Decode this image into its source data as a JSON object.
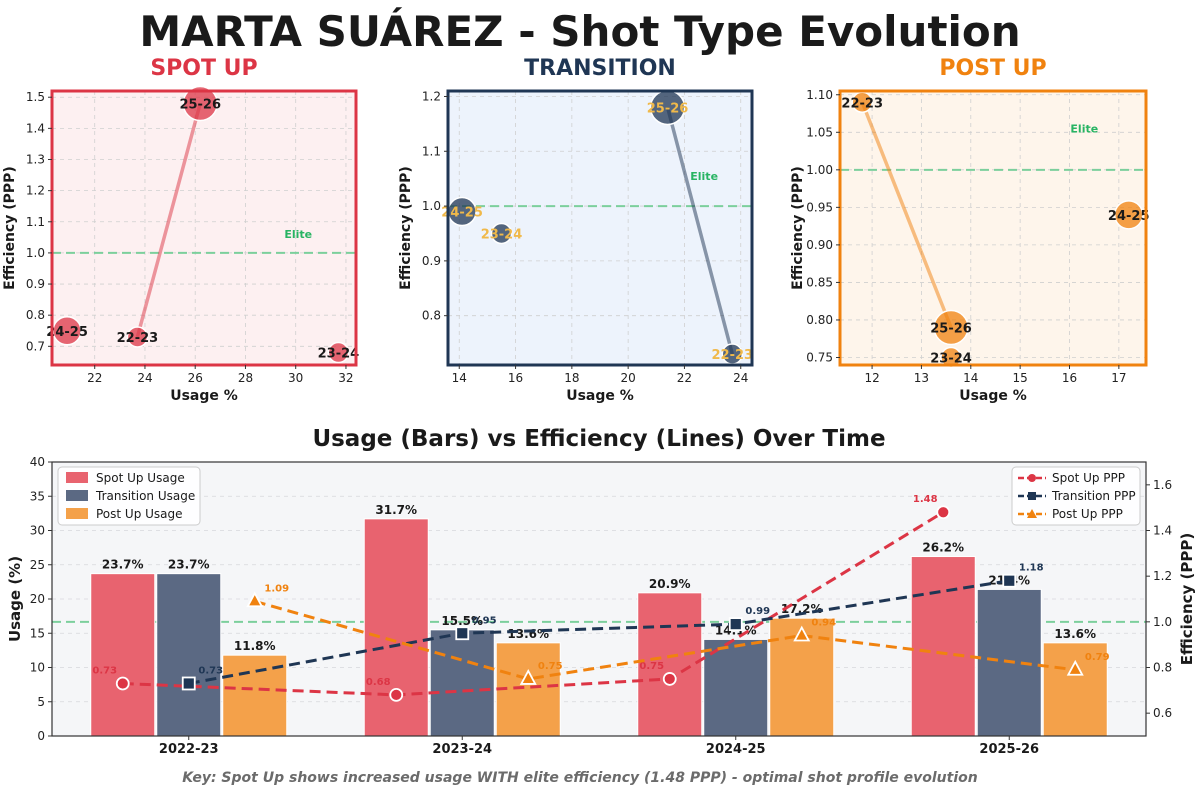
{
  "title": "MARTA SUÁREZ - Shot Type Evolution",
  "footer": "Key: Spot Up shows increased usage WITH elite efficiency (1.48 PPP) - optimal shot profile evolution",
  "chart_data": [
    {
      "type": "scatter",
      "title": "SPOT UP",
      "color": "#dc3545",
      "bg": "#fdf0f1",
      "xlabel": "Usage %",
      "ylabel": "Efficiency (PPP)",
      "xlim": [
        20.3,
        32.4
      ],
      "ylim": [
        0.64,
        1.52
      ],
      "xticks": [
        22,
        24,
        26,
        28,
        30,
        32
      ],
      "yticks": [
        0.7,
        0.8,
        0.9,
        1.0,
        1.1,
        1.2,
        1.3,
        1.4,
        1.5
      ],
      "ytick_labels": [
        "0.7",
        "0.8",
        "0.9",
        "1.0",
        "1.1",
        "1.2",
        "1.3",
        "1.4",
        "1.5"
      ],
      "elite_line": 1.0,
      "elite_label": "Elite",
      "elite_pos": [
        30.1,
        1.06
      ],
      "points": [
        {
          "season": "22-23",
          "x": 23.7,
          "y": 0.73,
          "size": 1,
          "label_color": "#1a1a1a"
        },
        {
          "season": "23-24",
          "x": 31.7,
          "y": 0.68,
          "size": 1,
          "label_color": "#1a1a1a"
        },
        {
          "season": "24-25",
          "x": 20.9,
          "y": 0.75,
          "size": 2,
          "label_color": "#1a1a1a"
        },
        {
          "season": "25-26",
          "x": 26.2,
          "y": 1.48,
          "size": 3,
          "label_color": "#1a1a1a"
        }
      ]
    },
    {
      "type": "scatter",
      "title": "TRANSITION",
      "color": "#1f3654",
      "bg": "#edf3fc",
      "xlabel": "Usage %",
      "ylabel": "Efficiency (PPP)",
      "xlim": [
        13.6,
        24.4
      ],
      "ylim": [
        0.71,
        1.21
      ],
      "xticks": [
        14,
        16,
        18,
        20,
        22,
        24
      ],
      "yticks": [
        0.8,
        0.9,
        1.0,
        1.1,
        1.2
      ],
      "ytick_labels": [
        "0.8",
        "0.9",
        "1.0",
        "1.1",
        "1.2"
      ],
      "elite_line": 1.0,
      "elite_label": "Elite",
      "elite_pos": [
        22.7,
        1.055
      ],
      "points": [
        {
          "season": "22-23",
          "x": 23.7,
          "y": 0.73,
          "size": 1,
          "label_color": "#f0b94a"
        },
        {
          "season": "23-24",
          "x": 15.5,
          "y": 0.95,
          "size": 1,
          "label_color": "#f0b94a"
        },
        {
          "season": "24-25",
          "x": 14.1,
          "y": 0.99,
          "size": 2,
          "label_color": "#f0b94a"
        },
        {
          "season": "25-26",
          "x": 21.4,
          "y": 1.18,
          "size": 3,
          "label_color": "#f0b94a"
        }
      ]
    },
    {
      "type": "scatter",
      "title": "POST UP",
      "color": "#f0820f",
      "bg": "#fef5eb",
      "xlabel": "Usage %",
      "ylabel": "Efficiency (PPP)",
      "xlim": [
        11.35,
        17.55
      ],
      "ylim": [
        0.74,
        1.105
      ],
      "xticks": [
        12,
        13,
        14,
        15,
        16,
        17
      ],
      "yticks": [
        0.75,
        0.8,
        0.85,
        0.9,
        0.95,
        1.0,
        1.05,
        1.1
      ],
      "ytick_labels": [
        "0.75",
        "0.80",
        "0.85",
        "0.90",
        "0.95",
        "1.00",
        "1.05",
        "1.10"
      ],
      "elite_line": 1.0,
      "elite_label": "Elite",
      "elite_pos": [
        16.3,
        1.055
      ],
      "points": [
        {
          "season": "22-23",
          "x": 11.8,
          "y": 1.09,
          "size": 1,
          "label_color": "#1a1a1a"
        },
        {
          "season": "23-24",
          "x": 13.6,
          "y": 0.75,
          "size": 1,
          "label_color": "#1a1a1a"
        },
        {
          "season": "24-25",
          "x": 17.2,
          "y": 0.94,
          "size": 2,
          "label_color": "#1a1a1a"
        },
        {
          "season": "25-26",
          "x": 13.6,
          "y": 0.79,
          "size": 3,
          "label_color": "#1a1a1a"
        }
      ]
    },
    {
      "type": "bar",
      "title": "Usage (Bars) vs Efficiency (Lines) Over Time",
      "categories": [
        "2022-23",
        "2023-24",
        "2024-25",
        "2025-26"
      ],
      "ylabel": "Usage (%)",
      "ylabel2": "Efficiency (PPP)",
      "ylim": [
        0,
        40
      ],
      "yticks": [
        0,
        5,
        10,
        15,
        20,
        25,
        30,
        35,
        40
      ],
      "ylim2": [
        0.5,
        1.7
      ],
      "yticks2": [
        0.6,
        0.8,
        1.0,
        1.2,
        1.4,
        1.6
      ],
      "ytick2_labels": [
        "0.6",
        "0.8",
        "1.0",
        "1.2",
        "1.4",
        "1.6"
      ],
      "elite_line": 1.0,
      "bar_series": [
        {
          "name": "Spot Up Usage",
          "color": "#e8636f",
          "values": [
            23.7,
            31.7,
            20.9,
            26.2
          ],
          "labels": [
            "23.7%",
            "31.7%",
            "20.9%",
            "26.2%"
          ]
        },
        {
          "name": "Transition Usage",
          "color": "#5b6983",
          "values": [
            23.7,
            15.5,
            14.1,
            21.4
          ],
          "labels": [
            "23.7%",
            "15.5%",
            "14.1%",
            "21.4%"
          ]
        },
        {
          "name": "Post Up Usage",
          "color": "#f4a14a",
          "values": [
            11.8,
            13.6,
            17.2,
            13.6
          ],
          "labels": [
            "11.8%",
            "13.6%",
            "17.2%",
            "13.6%"
          ]
        }
      ],
      "line_series": [
        {
          "name": "Spot Up PPP",
          "color": "#dc3545",
          "marker": "circle",
          "values": [
            0.73,
            0.68,
            0.75,
            1.48
          ],
          "labels": [
            "0.73",
            "0.68",
            "0.75",
            "1.48"
          ]
        },
        {
          "name": "Transition PPP",
          "color": "#1f3654",
          "marker": "square",
          "values": [
            0.73,
            0.95,
            0.99,
            1.18
          ],
          "labels": [
            "0.73",
            "0.95",
            "0.99",
            "1.18"
          ]
        },
        {
          "name": "Post Up PPP",
          "color": "#f0820f",
          "marker": "triangle",
          "values": [
            1.09,
            0.75,
            0.94,
            0.79
          ],
          "labels": [
            "1.09",
            "0.75",
            "0.94",
            "0.79"
          ]
        }
      ]
    }
  ]
}
